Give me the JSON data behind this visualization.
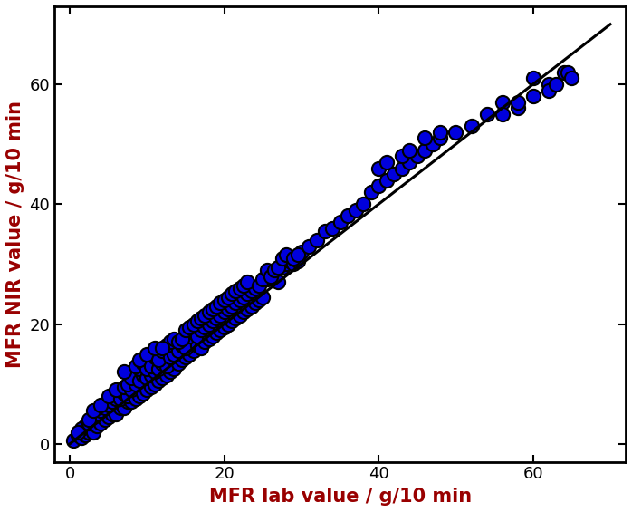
{
  "xlabel": "MFR lab value / g/10 min",
  "ylabel": "MFR NIR value / g/10 min",
  "label_color": "#990000",
  "xlim": [
    -2,
    72
  ],
  "ylim": [
    -3,
    73
  ],
  "xticks": [
    0,
    20,
    40,
    60
  ],
  "yticks": [
    0,
    20,
    40,
    60
  ],
  "ref_line_x": [
    0,
    70
  ],
  "ref_line_y": [
    0,
    70
  ],
  "dot_color": "#0000dd",
  "dot_edge_color": "#000000",
  "dot_size": 120,
  "dot_linewidth": 1.5,
  "figsize": [
    6.98,
    5.65
  ],
  "scatter_x": [
    0.5,
    1.0,
    1.5,
    2.0,
    2.5,
    2.0,
    1.5,
    3.0,
    2.5,
    1.0,
    3.5,
    4.0,
    3.0,
    4.5,
    3.5,
    2.5,
    5.0,
    4.0,
    5.5,
    4.5,
    3.0,
    6.0,
    5.0,
    6.5,
    5.5,
    4.0,
    7.0,
    6.0,
    7.5,
    5.0,
    6.5,
    7.0,
    8.0,
    7.5,
    6.0,
    8.5,
    7.0,
    9.0,
    8.0,
    7.5,
    9.5,
    8.5,
    8.0,
    10.0,
    9.0,
    9.5,
    7.0,
    10.5,
    9.0,
    10.0,
    11.0,
    8.5,
    10.5,
    11.5,
    9.5,
    10.0,
    12.0,
    11.0,
    9.0,
    12.5,
    10.5,
    11.5,
    12.0,
    13.0,
    11.0,
    10.0,
    13.5,
    12.5,
    11.5,
    14.0,
    12.0,
    13.0,
    11.0,
    14.5,
    13.5,
    12.5,
    15.0,
    14.0,
    13.0,
    12.0,
    15.5,
    14.5,
    13.5,
    16.0,
    15.0,
    14.0,
    16.5,
    15.5,
    14.5,
    17.0,
    16.0,
    15.0,
    17.5,
    16.5,
    15.5,
    18.0,
    17.0,
    16.0,
    18.5,
    17.5,
    16.5,
    19.0,
    18.0,
    17.0,
    19.5,
    18.5,
    17.5,
    20.0,
    19.0,
    18.0,
    20.5,
    19.5,
    18.5,
    21.0,
    20.0,
    19.0,
    21.5,
    20.5,
    19.5,
    22.0,
    21.0,
    20.0,
    22.5,
    21.5,
    20.5,
    23.0,
    22.0,
    21.0,
    23.5,
    22.5,
    21.5,
    24.0,
    23.0,
    22.0,
    24.5,
    23.5,
    22.5,
    25.0,
    24.0,
    23.0,
    25.5,
    24.5,
    26.0,
    25.0,
    26.5,
    25.5,
    27.0,
    26.0,
    27.5,
    26.5,
    28.0,
    27.0,
    28.5,
    27.5,
    29.0,
    28.0,
    29.5,
    29.0,
    30.0,
    29.5,
    31.0,
    32.0,
    33.0,
    34.0,
    35.0,
    36.0,
    37.0,
    38.0,
    39.0,
    40.0,
    41.0,
    42.0,
    43.0,
    44.0,
    45.0,
    46.0,
    47.0,
    48.0,
    40.0,
    41.0,
    43.0,
    44.0,
    46.0,
    48.0,
    50.0,
    52.0,
    54.0,
    56.0,
    58.0,
    60.0,
    62.0,
    64.0,
    56.0,
    58.0,
    60.0,
    62.0,
    63.0,
    64.5,
    65.0
  ],
  "scatter_y": [
    0.5,
    1.5,
    1.0,
    1.5,
    2.0,
    3.0,
    2.5,
    2.0,
    3.5,
    2.0,
    3.0,
    3.5,
    4.5,
    4.0,
    5.0,
    4.0,
    4.5,
    5.5,
    5.0,
    6.0,
    5.5,
    5.0,
    6.5,
    6.0,
    7.0,
    6.5,
    6.0,
    7.5,
    7.0,
    8.0,
    7.5,
    8.5,
    7.0,
    8.0,
    9.0,
    7.5,
    9.5,
    8.0,
    9.0,
    10.0,
    8.5,
    10.0,
    11.0,
    9.0,
    10.5,
    11.5,
    12.0,
    9.5,
    12.5,
    11.0,
    10.0,
    13.0,
    11.5,
    10.5,
    13.5,
    12.5,
    11.0,
    12.0,
    14.0,
    11.5,
    13.0,
    12.5,
    13.5,
    12.0,
    14.5,
    15.0,
    12.5,
    13.0,
    14.0,
    13.5,
    15.5,
    14.5,
    16.0,
    14.0,
    15.0,
    16.5,
    14.5,
    15.5,
    17.0,
    16.0,
    15.0,
    16.5,
    17.5,
    15.5,
    16.0,
    17.0,
    16.5,
    18.0,
    17.5,
    16.0,
    18.5,
    19.0,
    17.0,
    18.0,
    19.5,
    17.5,
    19.0,
    20.0,
    18.0,
    19.5,
    20.5,
    18.5,
    20.0,
    21.0,
    19.0,
    20.5,
    21.5,
    19.5,
    21.0,
    22.0,
    20.0,
    21.5,
    22.5,
    20.5,
    22.0,
    23.0,
    21.0,
    22.5,
    23.5,
    21.5,
    23.0,
    24.0,
    22.0,
    23.5,
    24.5,
    22.5,
    24.0,
    25.0,
    23.0,
    24.5,
    25.5,
    23.5,
    25.0,
    26.0,
    24.0,
    25.5,
    26.5,
    24.5,
    26.0,
    27.0,
    27.5,
    26.5,
    28.0,
    27.5,
    28.5,
    29.0,
    27.0,
    28.0,
    29.5,
    29.0,
    30.0,
    29.5,
    30.5,
    31.0,
    30.0,
    31.5,
    30.5,
    31.0,
    32.0,
    31.5,
    33.0,
    34.0,
    35.5,
    36.0,
    37.0,
    38.0,
    39.0,
    40.0,
    42.0,
    43.0,
    44.0,
    45.0,
    46.0,
    47.0,
    48.0,
    49.0,
    50.0,
    51.0,
    46.0,
    47.0,
    48.0,
    49.0,
    51.0,
    52.0,
    52.0,
    53.0,
    55.0,
    57.0,
    56.0,
    58.0,
    60.0,
    62.0,
    55.0,
    57.0,
    61.0,
    59.0,
    60.0,
    62.0,
    61.0
  ]
}
